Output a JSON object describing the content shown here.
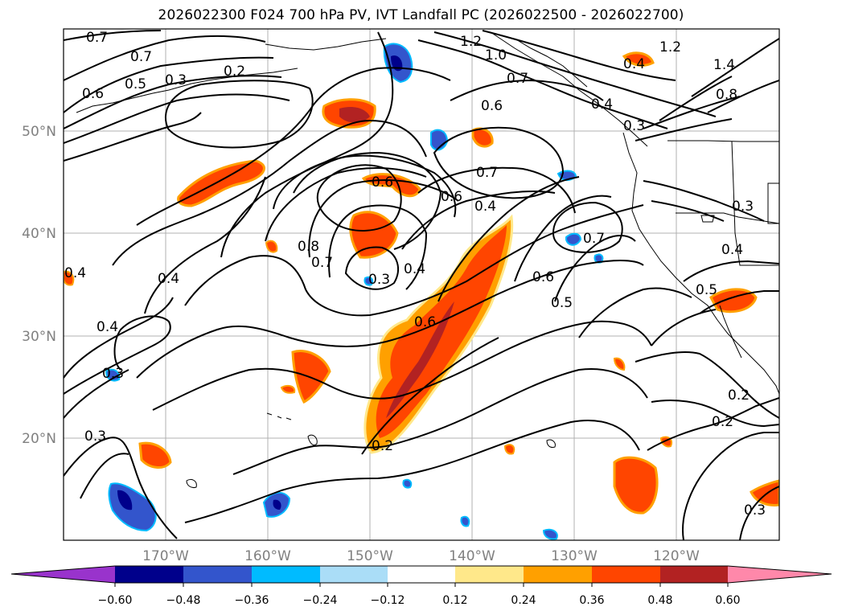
{
  "title": "2026022300 F024 700 hPa PV, IVT Landfall PC (2026022500 - 2026022700)",
  "lat_labels": [
    "50°N",
    "40°N",
    "30°N",
    "20°N"
  ],
  "lon_labels": [
    "170°W",
    "160°W",
    "150°W",
    "140°W",
    "130°W",
    "120°W"
  ],
  "contour_labels": [
    "0.7",
    "0.7",
    "0.6",
    "0.5",
    "0.3",
    "0.2",
    "1.2",
    "1.0",
    "0.7",
    "0.6",
    "0.4",
    "0.3",
    "1.2",
    "1.4",
    "0.8",
    "0.6",
    "0.7",
    "0.6",
    "0.4",
    "0.8",
    "0.7",
    "0.3",
    "0.4",
    "0.7",
    "0.6",
    "0.5",
    "0.4",
    "0.4",
    "0.4",
    "0.3",
    "0.6",
    "0.4",
    "0.5",
    "0.3",
    "0.2",
    "0.2",
    "0.2",
    "0.3",
    "0.3",
    "0.4"
  ],
  "colorbar": {
    "ticks": [
      "−0.60",
      "−0.48",
      "−0.36",
      "−0.24",
      "−0.12",
      "0.12",
      "0.24",
      "0.36",
      "0.48",
      "0.60"
    ],
    "colors": [
      "#9933cc",
      "#00008b",
      "#3355cc",
      "#00bbff",
      "#aaddf7",
      "#ffffff",
      "#ffe88a",
      "#ffa000",
      "#ff4500",
      "#b22222",
      "#ff88aa"
    ]
  }
}
